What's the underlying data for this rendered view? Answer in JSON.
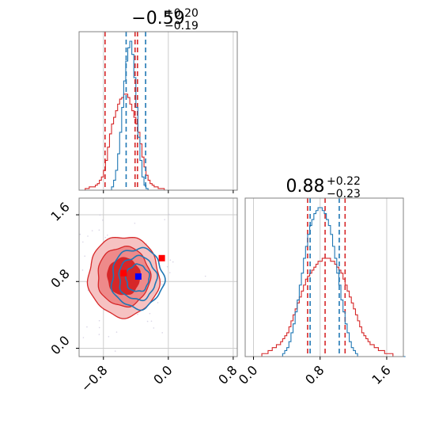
{
  "colors": {
    "red": "#d62728",
    "blue": "#1f77b4",
    "red_fill_light": "#f4a6a6",
    "red_fill_dark": "#d62728",
    "grid": "#cccccc",
    "axis": "#808080"
  },
  "chart_data": [
    {
      "type": "histogram",
      "panel": "marginal-param1",
      "title_value": "−0.59",
      "title_upper": "+0.20",
      "title_lower": "−0.19",
      "xlim": [
        -1.1,
        0.85
      ],
      "xticks": [
        -0.8,
        0.0,
        0.8
      ],
      "grid": true,
      "series": [
        {
          "color": "#d62728",
          "bin_start": -1.1,
          "bin_width": 0.025,
          "counts": [
            0,
            0,
            0,
            1,
            1,
            2,
            2,
            2,
            3,
            4,
            6,
            8,
            12,
            18,
            26,
            34,
            40,
            44,
            48,
            52,
            55,
            56,
            58,
            58,
            56,
            52,
            48,
            44,
            40,
            35,
            28,
            20,
            14,
            9,
            6,
            4,
            3,
            2,
            2,
            1,
            1,
            1,
            0,
            0,
            0,
            0,
            0,
            0,
            0,
            0,
            0,
            0,
            0,
            0,
            0,
            0,
            0,
            0,
            0,
            0,
            0,
            0,
            0,
            0,
            0,
            0,
            0,
            0,
            0,
            0,
            0,
            0,
            0,
            0,
            0,
            0,
            0,
            0
          ],
          "quantile_lines": [
            -0.78,
            -0.38
          ]
        },
        {
          "color": "#1f77b4",
          "bin_start": -1.1,
          "bin_width": 0.025,
          "counts": [
            0,
            0,
            0,
            0,
            0,
            0,
            0,
            0,
            0,
            0,
            0,
            0,
            0,
            0,
            0,
            0,
            2,
            6,
            12,
            22,
            35,
            50,
            66,
            78,
            86,
            90,
            82,
            68,
            50,
            32,
            18,
            8,
            3,
            1,
            0,
            0,
            0,
            0,
            0,
            0,
            0,
            0,
            0,
            0,
            0,
            0,
            0,
            0,
            0,
            0,
            0,
            0,
            0,
            0,
            0,
            0,
            0,
            0,
            0,
            0,
            0,
            0,
            0,
            0,
            0,
            0,
            0,
            0,
            0,
            0,
            0,
            0,
            0,
            0,
            0,
            0,
            0,
            0
          ],
          "quantile_lines": [
            -0.52,
            -0.28
          ]
        }
      ],
      "median_line": -0.41
    },
    {
      "type": "histogram",
      "panel": "marginal-param2",
      "title_value": "0.88",
      "title_upper": "+0.22",
      "title_lower": "−0.23",
      "xlim": [
        -0.1,
        1.8
      ],
      "xticks": [
        0.0,
        0.8,
        1.6
      ],
      "grid": true,
      "series": [
        {
          "color": "#d62728",
          "bin_start": -0.1,
          "bin_width": 0.025,
          "counts": [
            0,
            0,
            0,
            0,
            0,
            0,
            0,
            0,
            1,
            1,
            1,
            2,
            2,
            3,
            3,
            4,
            4,
            5,
            6,
            7,
            8,
            10,
            12,
            14,
            16,
            18,
            20,
            22,
            24,
            26,
            27,
            28,
            29,
            30,
            31,
            32,
            32,
            33,
            33,
            33,
            33,
            32,
            32,
            31,
            30,
            29,
            28,
            26,
            24,
            22,
            20,
            18,
            16,
            14,
            12,
            10,
            8,
            7,
            6,
            5,
            4,
            4,
            3,
            3,
            2,
            2,
            2,
            1,
            1,
            1,
            1,
            0,
            0,
            0,
            0,
            0,
            0
          ],
          "quantile_lines": [
            0.65,
            1.1
          ]
        },
        {
          "color": "#1f77b4",
          "bin_start": -0.1,
          "bin_width": 0.025,
          "counts": [
            0,
            0,
            0,
            0,
            0,
            0,
            0,
            0,
            0,
            0,
            0,
            0,
            0,
            0,
            0,
            0,
            0,
            0,
            1,
            2,
            3,
            5,
            8,
            11,
            15,
            19,
            24,
            28,
            33,
            37,
            41,
            44,
            46,
            48,
            49,
            50,
            50,
            49,
            48,
            46,
            44,
            41,
            37,
            33,
            28,
            24,
            19,
            15,
            11,
            8,
            5,
            3,
            2,
            1,
            0,
            0,
            0,
            0,
            0,
            0,
            0,
            0,
            0,
            0,
            0,
            0,
            0,
            0,
            0,
            0,
            0,
            0,
            0,
            0,
            0,
            0,
            0
          ],
          "quantile_lines": [
            0.68,
            1.03
          ]
        }
      ],
      "median_line": 0.86
    },
    {
      "type": "contour",
      "panel": "joint-param1-param2",
      "xlim": [
        -1.1,
        0.85
      ],
      "ylim": [
        -0.1,
        1.8
      ],
      "xticks": [
        -0.8,
        0.0,
        0.8
      ],
      "yticks": [
        0.0,
        0.8,
        1.6
      ],
      "grid": true,
      "red_center": [
        -0.55,
        0.86
      ],
      "red_sigmas": [
        0.19,
        0.21
      ],
      "blue_center": [
        -0.38,
        0.84
      ],
      "blue_sigmas": [
        0.16,
        0.18
      ],
      "markers": [
        {
          "x": -0.55,
          "y": 0.9,
          "color": "#ff0000"
        },
        {
          "x": -0.08,
          "y": 1.08,
          "color": "#ff0000"
        },
        {
          "x": -0.37,
          "y": 0.86,
          "color": "#0000ff"
        }
      ]
    }
  ]
}
